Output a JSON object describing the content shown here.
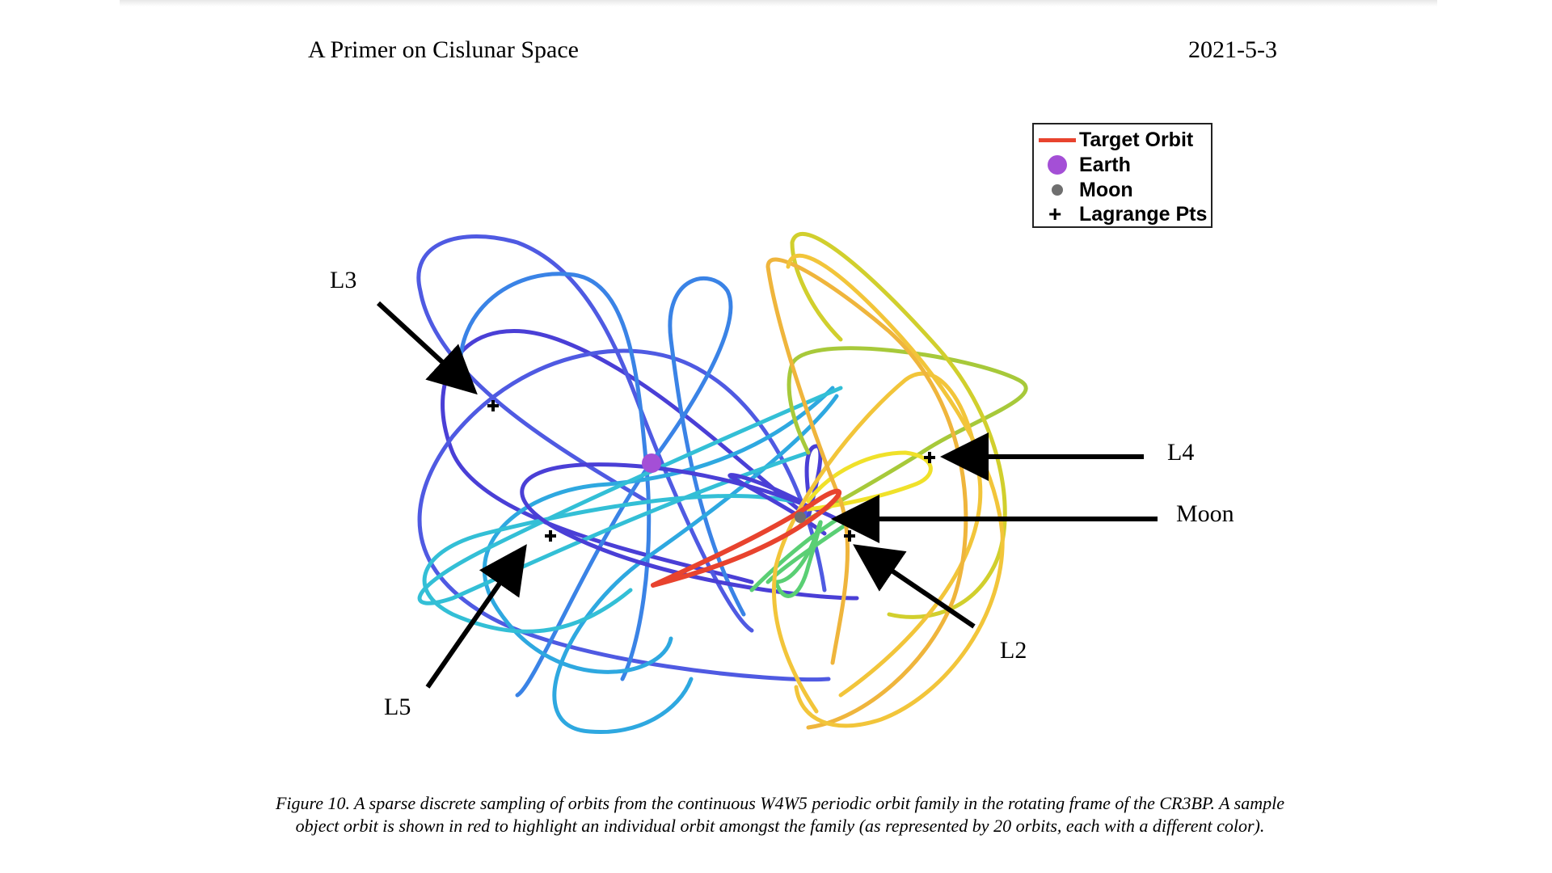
{
  "header": {
    "left_title": "A Primer on Cislunar Space",
    "right_date": "2021-5-3"
  },
  "legend": {
    "target_orbit": "Target Orbit",
    "earth": "Earth",
    "moon": "Moon",
    "lagrange": "Lagrange Pts"
  },
  "callouts": {
    "l3": "L3",
    "l4": "L4",
    "l5": "L5",
    "l2": "L2",
    "moon": "Moon"
  },
  "caption": {
    "text": "Figure 10. A sparse discrete sampling of orbits from the continuous W4W5 periodic orbit family in the rotating frame of the CR3BP. A sample object orbit is shown in red to highlight an individual orbit amongst the family (as represented by 20 orbits, each with a different color)."
  },
  "colors": {
    "target_orbit": "#e8432e",
    "earth": "#a44fd6",
    "moon": "#6f6f6f",
    "family_palette": [
      "#4a3fd6",
      "#4f5ae2",
      "#3a83e6",
      "#2ea8e0",
      "#33bfd6",
      "#4cc7a5",
      "#5acf74",
      "#a7c93a",
      "#d1cf2d",
      "#f0e12a",
      "#f2c53a",
      "#efb53c"
    ]
  }
}
